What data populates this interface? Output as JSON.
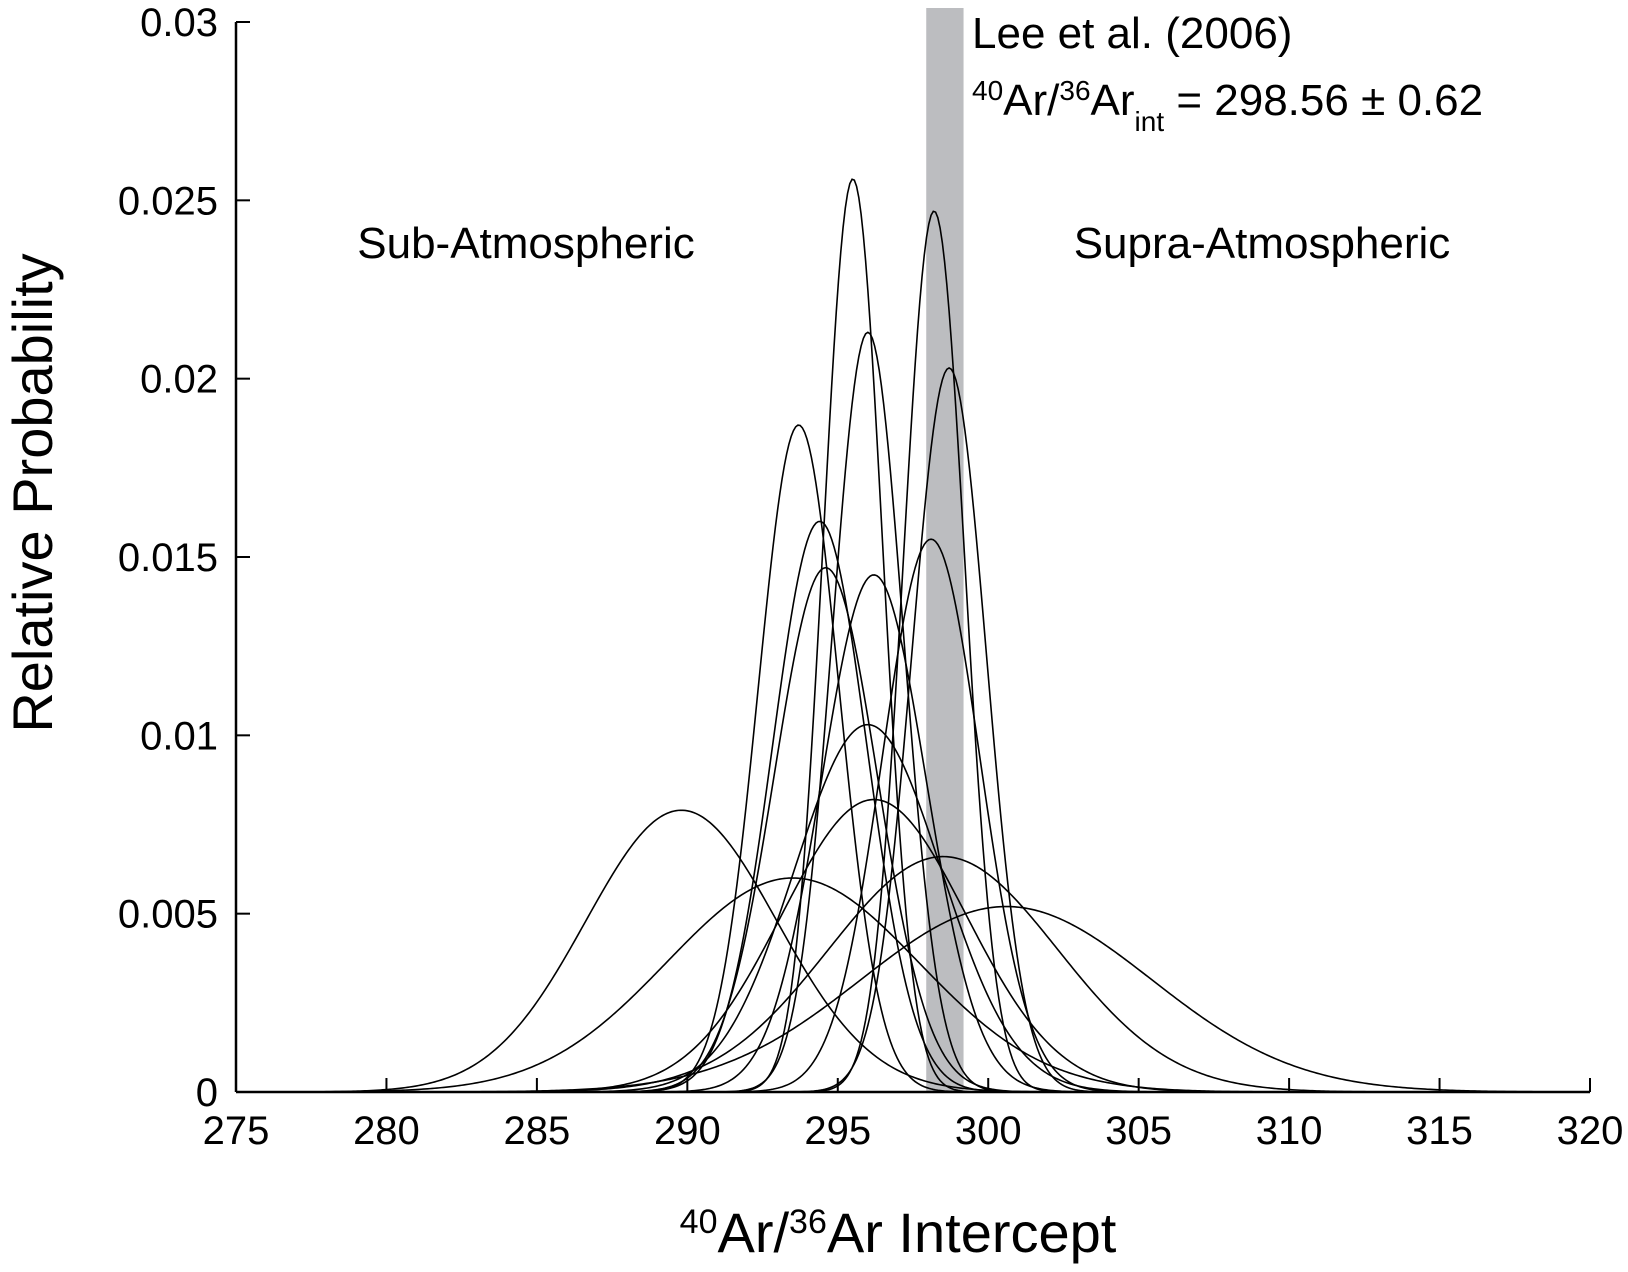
{
  "chart_data": {
    "type": "line",
    "title": "",
    "xlabel": {
      "prefix_sup": "40",
      "main1": "Ar/",
      "mid_sup": "36",
      "main2": "Ar Intercept"
    },
    "ylabel": "Relative Probability",
    "xlim": [
      275,
      320
    ],
    "ylim": [
      0,
      0.03
    ],
    "x_ticks": [
      "275",
      "280",
      "285",
      "290",
      "295",
      "300",
      "305",
      "310",
      "315",
      "320"
    ],
    "x_tick_values": [
      275,
      280,
      285,
      290,
      295,
      300,
      305,
      310,
      315,
      320
    ],
    "y_ticks": [
      "0",
      "0.005",
      "0.01",
      "0.015",
      "0.02",
      "0.025",
      "0.03"
    ],
    "y_tick_values": [
      0,
      0.005,
      0.01,
      0.015,
      0.02,
      0.025,
      0.03
    ],
    "grid": false,
    "reference_band": {
      "center": 298.56,
      "half_width": 0.62,
      "color": "#bcbdc0",
      "label_line1": "Lee et al. (2006)",
      "label_line2": {
        "sup1": "40",
        "t1": "Ar/",
        "sup2": "36",
        "t2": "Ar",
        "sub": "int",
        "t3": " = 298.56 ± 0.62"
      }
    },
    "annotations": {
      "left": "Sub-Atmospheric",
      "right": "Supra-Atmospheric"
    },
    "curves": [
      {
        "mu": 289.8,
        "peak": 0.0079
      },
      {
        "mu": 293.5,
        "peak": 0.006
      },
      {
        "mu": 293.7,
        "peak": 0.0187
      },
      {
        "mu": 294.4,
        "peak": 0.016
      },
      {
        "mu": 294.6,
        "peak": 0.0147
      },
      {
        "mu": 295.5,
        "peak": 0.0256
      },
      {
        "mu": 296.0,
        "peak": 0.0213
      },
      {
        "mu": 296.2,
        "peak": 0.0145
      },
      {
        "mu": 296.0,
        "peak": 0.0103
      },
      {
        "mu": 296.2,
        "peak": 0.0082
      },
      {
        "mu": 298.1,
        "peak": 0.0155
      },
      {
        "mu": 298.2,
        "peak": 0.0247
      },
      {
        "mu": 298.7,
        "peak": 0.0203
      },
      {
        "mu": 298.5,
        "peak": 0.0066
      },
      {
        "mu": 300.6,
        "peak": 0.0052
      }
    ]
  }
}
